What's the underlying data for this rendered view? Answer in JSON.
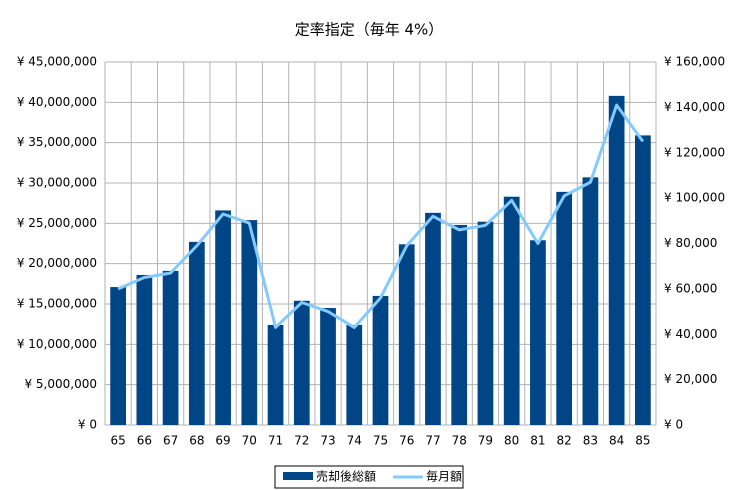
{
  "chart_data": {
    "type": "bar-line",
    "title": "定率指定（毎年 4%）",
    "categories": [
      "65",
      "66",
      "67",
      "68",
      "69",
      "70",
      "71",
      "72",
      "73",
      "74",
      "75",
      "76",
      "77",
      "78",
      "79",
      "80",
      "81",
      "82",
      "83",
      "84",
      "85"
    ],
    "series": [
      {
        "name": "売却後総額",
        "type": "bar",
        "color": "#004586",
        "axis": "y",
        "values": [
          17100000,
          18600000,
          19100000,
          22700000,
          26600000,
          25400000,
          12400000,
          15400000,
          14500000,
          12400000,
          16000000,
          22400000,
          26300000,
          24800000,
          25200000,
          28300000,
          22900000,
          28900000,
          30700000,
          40800000,
          35900000
        ]
      },
      {
        "name": "毎月額",
        "type": "line",
        "color": "#83caff",
        "axis": "y2",
        "values": [
          60000,
          65000,
          67000,
          79000,
          93000,
          89000,
          43000,
          54000,
          50000,
          43000,
          56000,
          79000,
          92000,
          86000,
          88000,
          99000,
          80000,
          101000,
          107000,
          141000,
          125000
        ]
      }
    ],
    "ylim": [
      0,
      45000000
    ],
    "yticks": [
      {
        "value": 0,
        "label": "¥ 0"
      },
      {
        "value": 5000000,
        "label": "¥ 5,000,000"
      },
      {
        "value": 10000000,
        "label": "¥ 10,000,000"
      },
      {
        "value": 15000000,
        "label": "¥ 15,000,000"
      },
      {
        "value": 20000000,
        "label": "¥ 20,000,000"
      },
      {
        "value": 25000000,
        "label": "¥ 25,000,000"
      },
      {
        "value": 30000000,
        "label": "¥ 30,000,000"
      },
      {
        "value": 35000000,
        "label": "¥ 35,000,000"
      },
      {
        "value": 40000000,
        "label": "¥ 40,000,000"
      },
      {
        "value": 45000000,
        "label": "¥ 45,000,000"
      }
    ],
    "y2lim": [
      0,
      160000
    ],
    "y2ticks": [
      {
        "value": 0,
        "label": "¥ 0"
      },
      {
        "value": 20000,
        "label": "¥ 20,000"
      },
      {
        "value": 40000,
        "label": "¥ 40,000"
      },
      {
        "value": 60000,
        "label": "¥ 60,000"
      },
      {
        "value": 80000,
        "label": "¥ 80,000"
      },
      {
        "value": 100000,
        "label": "¥ 100,000"
      },
      {
        "value": 120000,
        "label": "¥ 120,000"
      },
      {
        "value": 140000,
        "label": "¥ 140,000"
      },
      {
        "value": 160000,
        "label": "¥ 160,000"
      }
    ],
    "grid": true,
    "legend": "bottom"
  }
}
